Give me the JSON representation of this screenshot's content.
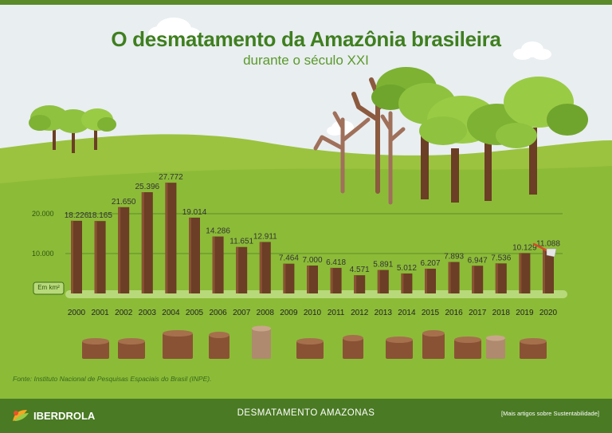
{
  "page": {
    "title": "O desmatamento da Amazônia brasileira",
    "subtitle": "durante o século XXI",
    "source": "Fonte: Instituto Nacional de Pesquisas Espaciais do Brasil (INPE).",
    "footer_center": "DESMATAMENTO AMAZONAS",
    "footer_link": "[Mais artigos sobre Sustentabilidade]",
    "logo_text": "IBERDROLA",
    "unit_badge": "Em km²"
  },
  "colors": {
    "bar": "#6b3e25",
    "bar_light": "#8a5234",
    "value_label": "#333333",
    "gridline": "#4f7f22",
    "hill_back": "#9bc33f",
    "hill_front": "#8cbb38",
    "tree_leaf": "#8fc23f",
    "tree_leaf_dark": "#6fa52d",
    "trunk": "#6b3e25"
  },
  "chart_data": {
    "type": "bar",
    "title": "O desmatamento da Amazônia brasileira",
    "subtitle": "durante o século XXI",
    "categories": [
      "2000",
      "2001",
      "2002",
      "2003",
      "2004",
      "2005",
      "2006",
      "2007",
      "2008",
      "2009",
      "2010",
      "2011",
      "2012",
      "2013",
      "2014",
      "2015",
      "2016",
      "2017",
      "2018",
      "2019",
      "2020"
    ],
    "values": [
      18226,
      18165,
      21650,
      25396,
      27772,
      19014,
      14286,
      11651,
      12911,
      7464,
      7000,
      6418,
      4571,
      5891,
      5012,
      6207,
      7893,
      6947,
      7536,
      10129,
      11088
    ],
    "value_labels": [
      "18.226",
      "18.165",
      "21.650",
      "25.396",
      "27.772",
      "19.014",
      "14.286",
      "11.651",
      "12.911",
      "7.464",
      "7.000",
      "6.418",
      "4.571",
      "5.891",
      "5.012",
      "6.207",
      "7.893",
      "6.947",
      "7.536",
      "10.129",
      "11.088"
    ],
    "yticks": [
      10000,
      20000
    ],
    "ytick_labels": [
      "10.000",
      "20.000"
    ],
    "ylim": [
      0,
      30000
    ],
    "unit": "Em km²",
    "grid": true,
    "legend": "none"
  }
}
